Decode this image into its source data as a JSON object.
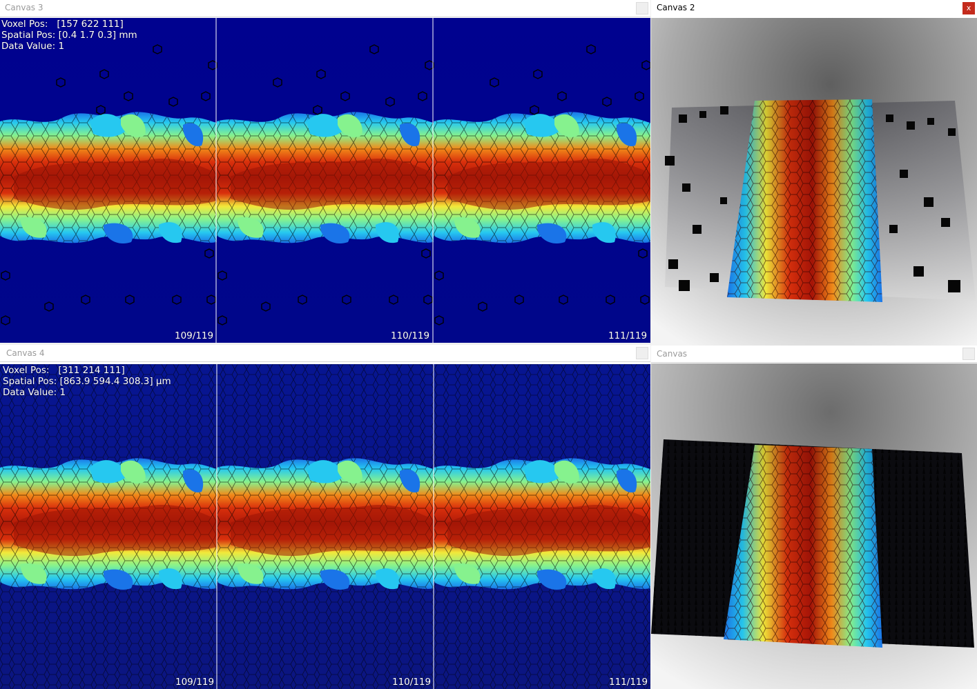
{
  "colors": {
    "background_blue": "#000a8c",
    "blue_top": "#00028f",
    "blue_bottom": "#0b1580",
    "separator": "#ffffff",
    "overlay_text": "#ffffff",
    "close_active": "#c42b1c",
    "render_bg_light": "#ffffff",
    "render_bg_dark": "#6c6c6c",
    "colormap": [
      "#00098c",
      "#1a74e8",
      "#26c8f0",
      "#86f28e",
      "#f2e93a",
      "#f28a19",
      "#d9300c",
      "#8c0a05"
    ]
  },
  "canvas3": {
    "title": "Canvas 3",
    "overlay": {
      "voxel_label": "Voxel Pos:",
      "voxel_value": "[157 622 111]",
      "spatial_label": "Spatial Pos:",
      "spatial_value": "[0.4 1.7 0.3] mm",
      "data_label": "Data Value:",
      "data_value": "1"
    },
    "slices": [
      "109/119",
      "110/119",
      "111/119"
    ]
  },
  "canvas4": {
    "title": "Canvas 4",
    "overlay": {
      "voxel_label": "Voxel Pos:",
      "voxel_value": "[311 214 111]",
      "spatial_label": "Spatial Pos:",
      "spatial_value": "[863.9 594.4 308.3] µm",
      "data_label": "Data Value:",
      "data_value": "1"
    },
    "slices": [
      "109/119",
      "110/119",
      "111/119"
    ]
  },
  "canvas2": {
    "title": "Canvas 2",
    "close_glyph": "x"
  },
  "canvas": {
    "title": "Canvas"
  },
  "icons": {
    "close": "close-icon",
    "minimize": "titlebar-button-icon"
  }
}
